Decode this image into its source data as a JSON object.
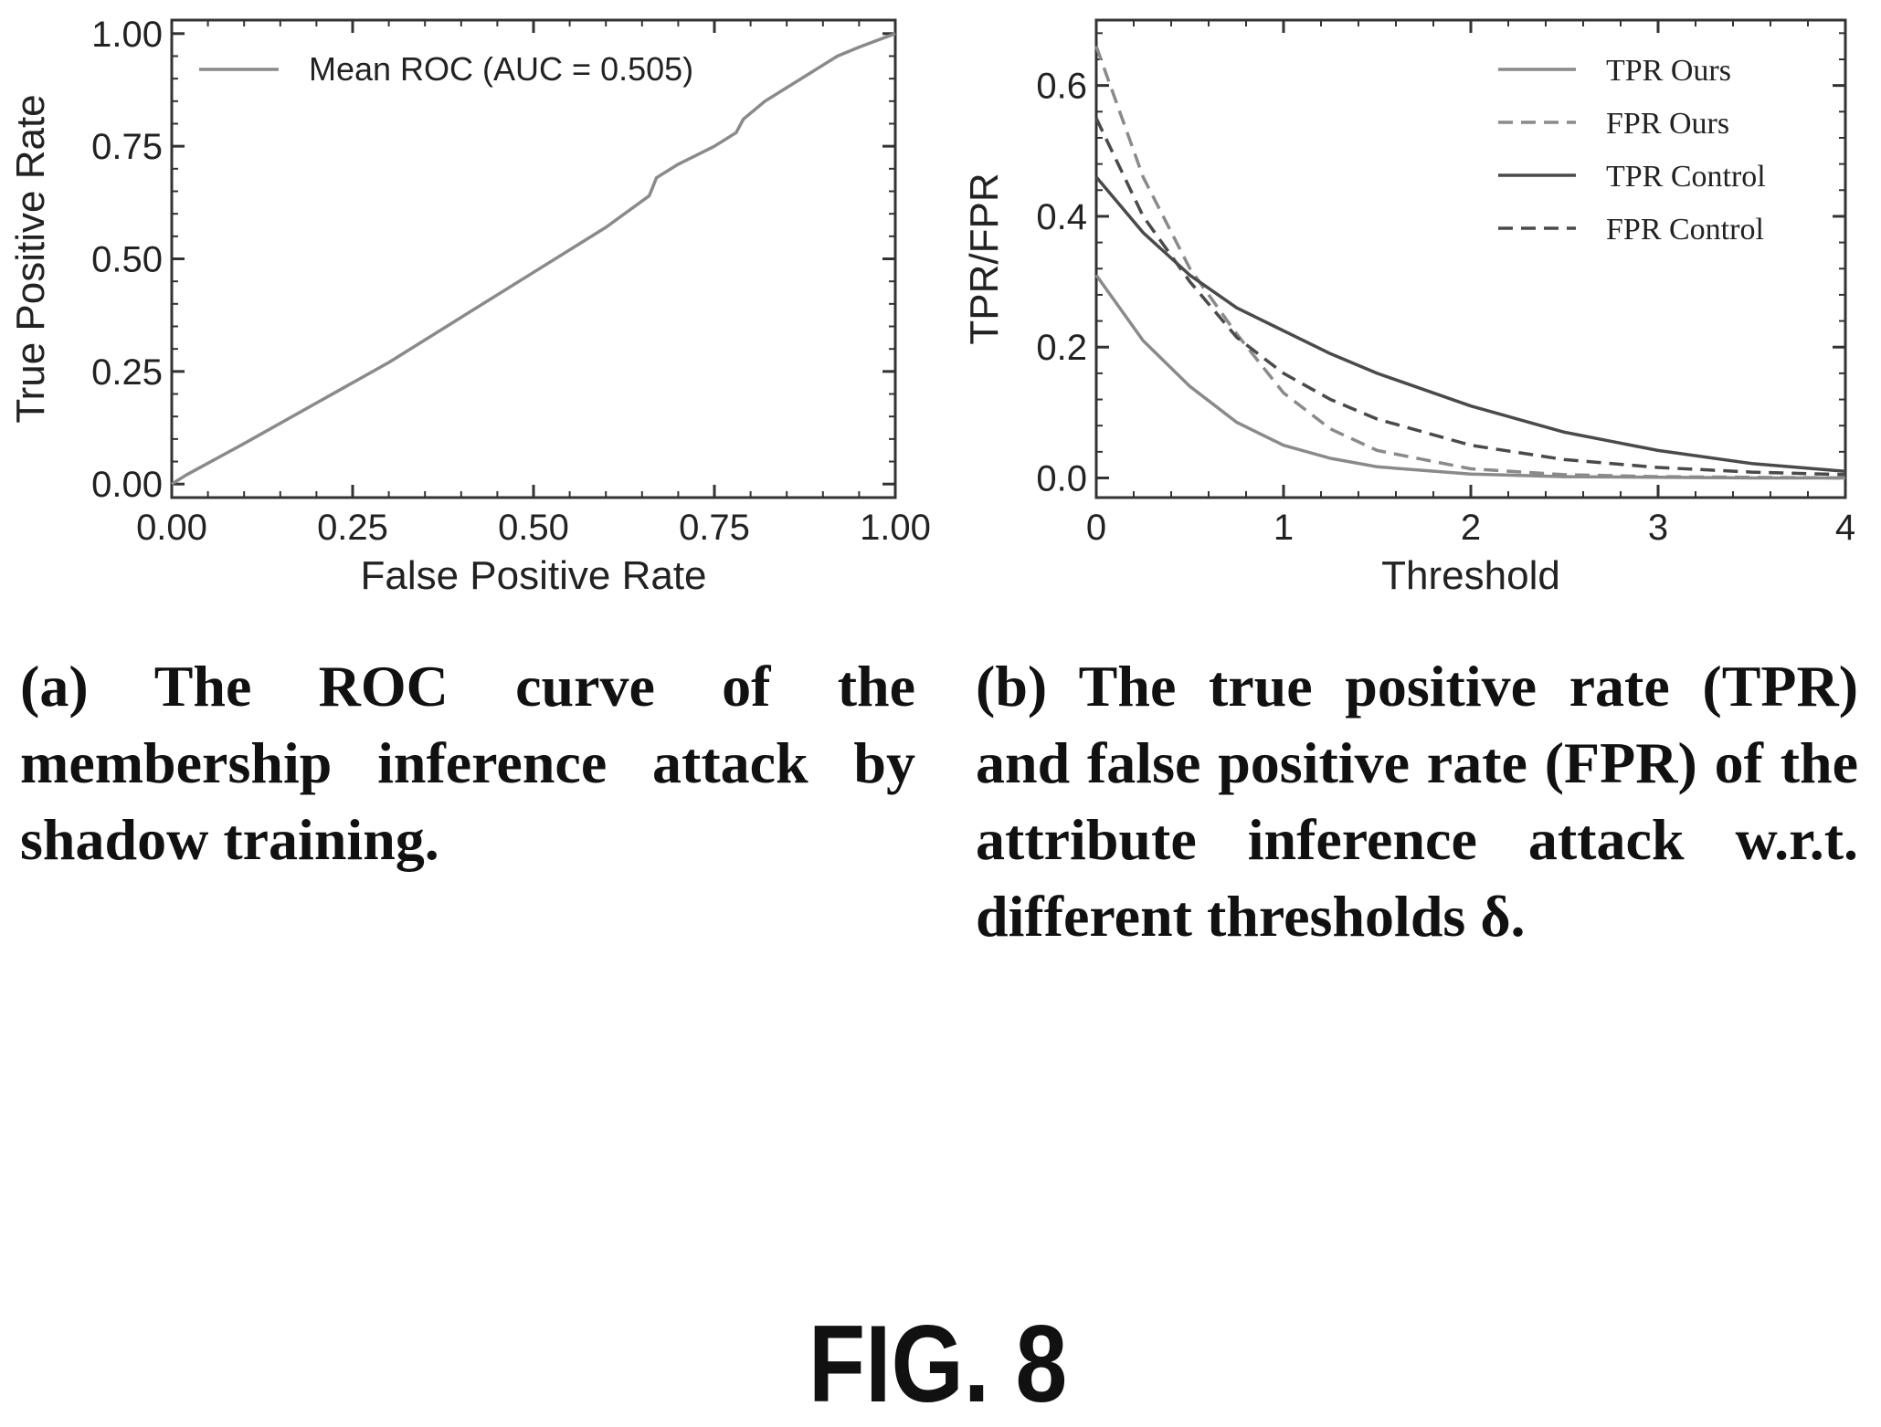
{
  "figure_label": "FIG. 8",
  "captions": {
    "a": "(a) The ROC curve of the membership inference attack by shadow training.",
    "b": "(b) The true positive rate (TPR) and false positive rate (FPR) of the attribute inference attack w.r.t. different thresholds δ."
  },
  "chart_data": [
    {
      "type": "line",
      "xlabel": "False Positive Rate",
      "ylabel": "True Positive Rate",
      "xlim": [
        0,
        1
      ],
      "ylim": [
        -0.03,
        1.03
      ],
      "xticks": [
        "0.00",
        "0.25",
        "0.50",
        "0.75",
        "1.00"
      ],
      "yticks": [
        "0.00",
        "0.25",
        "0.50",
        "0.75",
        "1.00"
      ],
      "legend_position": "top-left",
      "grid": false,
      "series": [
        {
          "name": "Mean ROC (AUC = 0.505)",
          "color": "#8a8a8a",
          "style": "solid",
          "x": [
            0.0,
            0.02,
            0.1,
            0.2,
            0.3,
            0.4,
            0.5,
            0.6,
            0.66,
            0.67,
            0.7,
            0.75,
            0.78,
            0.79,
            0.82,
            0.85,
            0.9,
            0.92,
            0.95,
            1.0
          ],
          "y": [
            0.0,
            0.02,
            0.09,
            0.18,
            0.27,
            0.37,
            0.47,
            0.57,
            0.64,
            0.68,
            0.71,
            0.75,
            0.78,
            0.81,
            0.85,
            0.88,
            0.93,
            0.95,
            0.97,
            1.0
          ]
        }
      ]
    },
    {
      "type": "line",
      "xlabel": "Threshold",
      "ylabel": "TPR/FPR",
      "xlim": [
        0,
        4
      ],
      "ylim": [
        -0.03,
        0.7
      ],
      "xticks": [
        "0",
        "1",
        "2",
        "3",
        "4"
      ],
      "yticks": [
        "0.0",
        "0.2",
        "0.4",
        "0.6"
      ],
      "legend_position": "top-right",
      "grid": false,
      "series": [
        {
          "name": "TPR Ours",
          "color": "#8a8a8a",
          "style": "solid",
          "x": [
            0,
            0.25,
            0.5,
            0.75,
            1.0,
            1.25,
            1.5,
            2.0,
            2.5,
            3.0,
            3.5,
            4.0
          ],
          "y": [
            0.31,
            0.21,
            0.14,
            0.085,
            0.05,
            0.03,
            0.017,
            0.006,
            0.002,
            0.001,
            0.0,
            0.0
          ]
        },
        {
          "name": "FPR Ours",
          "color": "#8a8a8a",
          "style": "dashed",
          "x": [
            0,
            0.25,
            0.5,
            0.75,
            1.0,
            1.25,
            1.5,
            2.0,
            2.5,
            3.0,
            3.5,
            4.0
          ],
          "y": [
            0.66,
            0.46,
            0.32,
            0.22,
            0.13,
            0.075,
            0.042,
            0.014,
            0.005,
            0.002,
            0.001,
            0.0
          ]
        },
        {
          "name": "TPR Control",
          "color": "#4a4a4a",
          "style": "solid",
          "x": [
            0,
            0.25,
            0.5,
            0.75,
            1.0,
            1.25,
            1.5,
            2.0,
            2.5,
            3.0,
            3.5,
            4.0
          ],
          "y": [
            0.46,
            0.375,
            0.31,
            0.26,
            0.225,
            0.19,
            0.16,
            0.11,
            0.07,
            0.042,
            0.022,
            0.01
          ]
        },
        {
          "name": "FPR Control",
          "color": "#4a4a4a",
          "style": "dashed",
          "x": [
            0,
            0.25,
            0.5,
            0.75,
            1.0,
            1.25,
            1.5,
            2.0,
            2.5,
            3.0,
            3.5,
            4.0
          ],
          "y": [
            0.55,
            0.4,
            0.3,
            0.215,
            0.16,
            0.12,
            0.09,
            0.05,
            0.028,
            0.016,
            0.009,
            0.005
          ]
        }
      ]
    }
  ]
}
